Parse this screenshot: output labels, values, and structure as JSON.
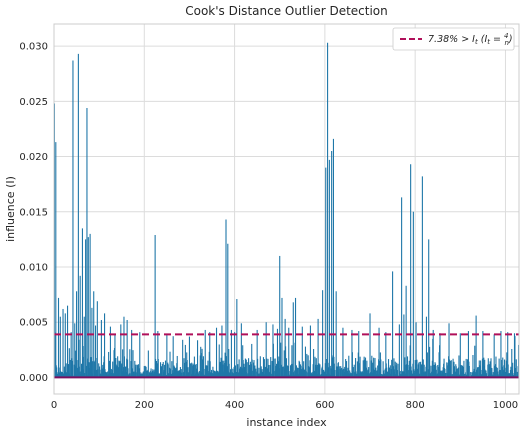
{
  "chart_data": {
    "type": "bar",
    "title": "Cook's Distance Outlier Detection",
    "xlabel": "instance index",
    "ylabel": "influence (I)",
    "xlim": [
      0,
      1030
    ],
    "ylim": [
      -0.0015,
      0.032
    ],
    "xticks": [
      0,
      200,
      400,
      600,
      800,
      1000
    ],
    "yticks": [
      0.0,
      0.005,
      0.01,
      0.015,
      0.02,
      0.025,
      0.03
    ],
    "ytick_labels": [
      "0.000",
      "0.005",
      "0.010",
      "0.015",
      "0.020",
      "0.025",
      "0.030"
    ],
    "grid": true,
    "legend_position": "top-right",
    "threshold": {
      "value": 0.0039,
      "label": "7.38% > I_t (I_t = 4/n)",
      "color": "#b0105a"
    },
    "bar_color": "#1f77a8",
    "n_instances": 1030,
    "outliers": [
      [
        1,
        0.0248
      ],
      [
        4,
        0.0213
      ],
      [
        10,
        0.0072
      ],
      [
        14,
        0.0055
      ],
      [
        20,
        0.0062
      ],
      [
        25,
        0.0058
      ],
      [
        30,
        0.0065
      ],
      [
        38,
        0.0041
      ],
      [
        42,
        0.0287
      ],
      [
        46,
        0.0049
      ],
      [
        50,
        0.0078
      ],
      [
        54,
        0.0293
      ],
      [
        58,
        0.0092
      ],
      [
        63,
        0.0135
      ],
      [
        67,
        0.0055
      ],
      [
        70,
        0.0125
      ],
      [
        73,
        0.0244
      ],
      [
        76,
        0.0127
      ],
      [
        80,
        0.013
      ],
      [
        84,
        0.0063
      ],
      [
        88,
        0.0078
      ],
      [
        92,
        0.0047
      ],
      [
        96,
        0.0069
      ],
      [
        105,
        0.0052
      ],
      [
        112,
        0.0058
      ],
      [
        125,
        0.0046
      ],
      [
        135,
        0.0039
      ],
      [
        148,
        0.0048
      ],
      [
        155,
        0.0055
      ],
      [
        162,
        0.0052
      ],
      [
        172,
        0.0043
      ],
      [
        190,
        0.0041
      ],
      [
        224,
        0.0129
      ],
      [
        230,
        0.0042
      ],
      [
        250,
        0.0039
      ],
      [
        300,
        0.0037
      ],
      [
        335,
        0.0043
      ],
      [
        345,
        0.0041
      ],
      [
        360,
        0.0045
      ],
      [
        372,
        0.0047
      ],
      [
        381,
        0.0143
      ],
      [
        385,
        0.0121
      ],
      [
        393,
        0.0043
      ],
      [
        400,
        0.0041
      ],
      [
        405,
        0.0071
      ],
      [
        415,
        0.0049
      ],
      [
        450,
        0.0043
      ],
      [
        470,
        0.005
      ],
      [
        485,
        0.0048
      ],
      [
        495,
        0.0044
      ],
      [
        500,
        0.011
      ],
      [
        505,
        0.0072
      ],
      [
        512,
        0.0053
      ],
      [
        520,
        0.0045
      ],
      [
        530,
        0.0068
      ],
      [
        535,
        0.0072
      ],
      [
        550,
        0.0046
      ],
      [
        568,
        0.0047
      ],
      [
        585,
        0.0053
      ],
      [
        595,
        0.0079
      ],
      [
        602,
        0.019
      ],
      [
        606,
        0.0303
      ],
      [
        610,
        0.0197
      ],
      [
        615,
        0.0205
      ],
      [
        619,
        0.0216
      ],
      [
        625,
        0.0078
      ],
      [
        640,
        0.0045
      ],
      [
        660,
        0.0043
      ],
      [
        675,
        0.0042
      ],
      [
        700,
        0.0058
      ],
      [
        720,
        0.0045
      ],
      [
        735,
        0.0041
      ],
      [
        750,
        0.0096
      ],
      [
        765,
        0.0048
      ],
      [
        770,
        0.0163
      ],
      [
        775,
        0.0057
      ],
      [
        780,
        0.0083
      ],
      [
        790,
        0.0193
      ],
      [
        796,
        0.015
      ],
      [
        802,
        0.005
      ],
      [
        816,
        0.0182
      ],
      [
        825,
        0.0055
      ],
      [
        830,
        0.0125
      ],
      [
        840,
        0.0043
      ],
      [
        855,
        0.004
      ],
      [
        875,
        0.0049
      ],
      [
        900,
        0.004
      ],
      [
        918,
        0.0042
      ],
      [
        935,
        0.0056
      ],
      [
        950,
        0.0042
      ],
      [
        975,
        0.0039
      ],
      [
        990,
        0.0042
      ],
      [
        1005,
        0.0041
      ],
      [
        1020,
        0.004
      ]
    ]
  }
}
